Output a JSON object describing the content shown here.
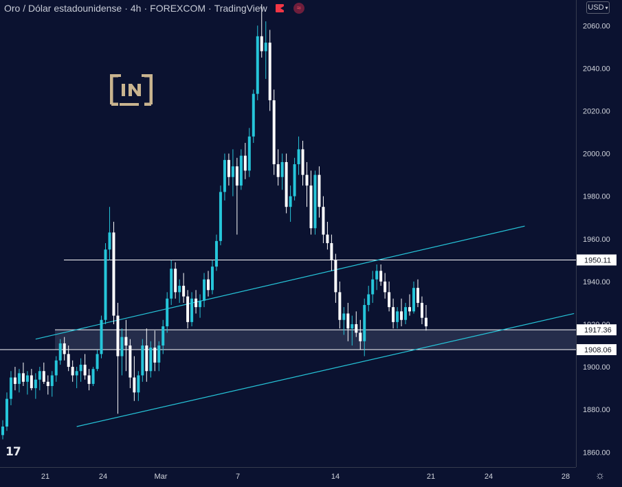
{
  "header": {
    "symbol": "Oro / Dólar estadounidense",
    "interval": "4h",
    "exchange": "FOREXCOM",
    "platform": "TradingView",
    "separator": "·"
  },
  "currency_button": "USD",
  "logo_text": "[IN]",
  "colors": {
    "background": "#0b1230",
    "candle": "#26c6da",
    "candle_alt": "#ffffff",
    "trendline": "#26c6da",
    "hline": "#ffffff",
    "zone": "#2a3250",
    "axis_text": "#d1d4dc"
  },
  "chart_data": {
    "type": "candlestick",
    "y_axis": {
      "ticks": [
        1860,
        1880,
        1900,
        1920,
        1940,
        1960,
        1980,
        2000,
        2020,
        2040,
        2060
      ],
      "range": [
        1853,
        2072
      ]
    },
    "x_axis": {
      "ticks": [
        "21",
        "24",
        "Mar",
        "7",
        "14",
        "21",
        "24",
        "28"
      ]
    },
    "price_labels": [
      {
        "value": 1950.11,
        "label": "1950.11"
      },
      {
        "value": 1917.36,
        "label": "1917.36"
      },
      {
        "value": 1908.06,
        "label": "1908.06"
      }
    ],
    "zone": {
      "from": 1908.06,
      "to": 1917.36
    },
    "horizontal_lines": [
      1950.11,
      1917.36,
      1908.06
    ],
    "trendlines": [
      {
        "from": {
          "bar": 8,
          "price": 1913
        },
        "to": {
          "bar": 127,
          "price": 1966
        }
      },
      {
        "from": {
          "bar": 18,
          "price": 1872
        },
        "to": {
          "bar": 139,
          "price": 1925
        }
      }
    ],
    "candles": [
      [
        1868,
        1875,
        1866,
        1872
      ],
      [
        1872,
        1888,
        1870,
        1885
      ],
      [
        1885,
        1898,
        1882,
        1895
      ],
      [
        1895,
        1900,
        1889,
        1892
      ],
      [
        1892,
        1899,
        1888,
        1897
      ],
      [
        1897,
        1902,
        1891,
        1893
      ],
      [
        1893,
        1898,
        1887,
        1896
      ],
      [
        1896,
        1899,
        1889,
        1890
      ],
      [
        1890,
        1897,
        1885,
        1894
      ],
      [
        1894,
        1900,
        1889,
        1898
      ],
      [
        1898,
        1902,
        1892,
        1893
      ],
      [
        1893,
        1896,
        1887,
        1891
      ],
      [
        1891,
        1898,
        1886,
        1896
      ],
      [
        1896,
        1905,
        1893,
        1903
      ],
      [
        1903,
        1913,
        1901,
        1911
      ],
      [
        1911,
        1914,
        1903,
        1906
      ],
      [
        1906,
        1910,
        1898,
        1900
      ],
      [
        1900,
        1903,
        1893,
        1896
      ],
      [
        1896,
        1900,
        1890,
        1898
      ],
      [
        1898,
        1904,
        1893,
        1901
      ],
      [
        1901,
        1906,
        1894,
        1896
      ],
      [
        1896,
        1899,
        1889,
        1892
      ],
      [
        1892,
        1900,
        1891,
        1899
      ],
      [
        1899,
        1908,
        1898,
        1906
      ],
      [
        1906,
        1924,
        1904,
        1922
      ],
      [
        1922,
        1958,
        1920,
        1955
      ],
      [
        1955,
        1975,
        1950,
        1963
      ],
      [
        1963,
        1968,
        1920,
        1924
      ],
      [
        1924,
        1930,
        1878,
        1905
      ],
      [
        1905,
        1918,
        1896,
        1914
      ],
      [
        1914,
        1922,
        1898,
        1910
      ],
      [
        1910,
        1913,
        1890,
        1895
      ],
      [
        1895,
        1905,
        1884,
        1888
      ],
      [
        1888,
        1898,
        1884,
        1896
      ],
      [
        1896,
        1913,
        1893,
        1910
      ],
      [
        1910,
        1918,
        1893,
        1898
      ],
      [
        1898,
        1912,
        1895,
        1909
      ],
      [
        1909,
        1917,
        1898,
        1902
      ],
      [
        1902,
        1912,
        1898,
        1910
      ],
      [
        1910,
        1922,
        1906,
        1919
      ],
      [
        1919,
        1935,
        1916,
        1932
      ],
      [
        1932,
        1950,
        1929,
        1946
      ],
      [
        1946,
        1949,
        1932,
        1935
      ],
      [
        1935,
        1941,
        1930,
        1938
      ],
      [
        1938,
        1944,
        1930,
        1933
      ],
      [
        1933,
        1936,
        1918,
        1921
      ],
      [
        1921,
        1935,
        1919,
        1932
      ],
      [
        1932,
        1936,
        1925,
        1928
      ],
      [
        1928,
        1934,
        1923,
        1931
      ],
      [
        1931,
        1944,
        1928,
        1941
      ],
      [
        1941,
        1945,
        1933,
        1936
      ],
      [
        1936,
        1950,
        1934,
        1947
      ],
      [
        1947,
        1962,
        1945,
        1959
      ],
      [
        1959,
        1985,
        1957,
        1982
      ],
      [
        1982,
        2000,
        1978,
        1997
      ],
      [
        1997,
        2000,
        1985,
        1989
      ],
      [
        1989,
        2002,
        1980,
        1994
      ],
      [
        1994,
        1998,
        1962,
        1985
      ],
      [
        1985,
        2002,
        1983,
        1999
      ],
      [
        1999,
        2005,
        1988,
        1992
      ],
      [
        1992,
        2012,
        1989,
        2008
      ],
      [
        2008,
        2030,
        2005,
        2028
      ],
      [
        2028,
        2060,
        2025,
        2055
      ],
      [
        2055,
        2070,
        2045,
        2048
      ],
      [
        2048,
        2062,
        2035,
        2052
      ],
      [
        2052,
        2058,
        2020,
        2025
      ],
      [
        2025,
        2030,
        1990,
        1995
      ],
      [
        1995,
        2002,
        1985,
        1989
      ],
      [
        1989,
        2000,
        1983,
        1996
      ],
      [
        1996,
        2000,
        1972,
        1975
      ],
      [
        1975,
        1985,
        1968,
        1980
      ],
      [
        1980,
        1998,
        1978,
        1995
      ],
      [
        1995,
        2008,
        1990,
        2002
      ],
      [
        2002,
        2006,
        1985,
        1990
      ],
      [
        1990,
        1996,
        1975,
        1985
      ],
      [
        1985,
        1992,
        1962,
        1965
      ],
      [
        1965,
        1992,
        1962,
        1990
      ],
      [
        1990,
        1994,
        1970,
        1975
      ],
      [
        1975,
        1980,
        1958,
        1962
      ],
      [
        1962,
        1968,
        1955,
        1958
      ],
      [
        1958,
        1962,
        1945,
        1950
      ],
      [
        1950,
        1953,
        1930,
        1935
      ],
      [
        1935,
        1940,
        1918,
        1922
      ],
      [
        1922,
        1928,
        1915,
        1925
      ],
      [
        1925,
        1930,
        1912,
        1918
      ],
      [
        1918,
        1924,
        1910,
        1920
      ],
      [
        1920,
        1926,
        1914,
        1916
      ],
      [
        1916,
        1922,
        1908,
        1912
      ],
      [
        1912,
        1932,
        1905,
        1929
      ],
      [
        1929,
        1938,
        1926,
        1934
      ],
      [
        1934,
        1945,
        1930,
        1941
      ],
      [
        1941,
        1948,
        1936,
        1945
      ],
      [
        1945,
        1948,
        1938,
        1940
      ],
      [
        1940,
        1944,
        1932,
        1935
      ],
      [
        1935,
        1940,
        1926,
        1928
      ],
      [
        1928,
        1932,
        1918,
        1921
      ],
      [
        1921,
        1928,
        1918,
        1926
      ],
      [
        1926,
        1932,
        1919,
        1922
      ],
      [
        1922,
        1930,
        1920,
        1928
      ],
      [
        1928,
        1934,
        1924,
        1926
      ],
      [
        1926,
        1940,
        1925,
        1937
      ],
      [
        1937,
        1941,
        1928,
        1930
      ],
      [
        1930,
        1933,
        1920,
        1923
      ],
      [
        1923,
        1929,
        1917,
        1919
      ]
    ]
  }
}
